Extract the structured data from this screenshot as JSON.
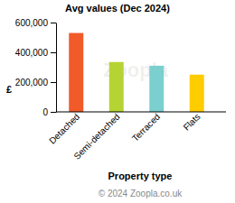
{
  "chart_data": {
    "type": "bar",
    "title": "Avg values (Dec 2024)",
    "categories": [
      "Detached",
      "Semi-detached",
      "Terraced",
      "Flats"
    ],
    "values": [
      530000,
      335000,
      310000,
      250000
    ],
    "colors": [
      "#f15a29",
      "#b6d334",
      "#7bcfcf",
      "#ffcc00"
    ],
    "ylim": [
      0,
      600000
    ],
    "yticks": [
      {
        "value": 0,
        "label": "0"
      },
      {
        "value": 200000,
        "label": "200,000"
      },
      {
        "value": 400000,
        "label": "400,000"
      },
      {
        "value": 600000,
        "label": "600,000"
      }
    ],
    "grid": false,
    "x_label": "Property type",
    "y_label": "£",
    "footer": "© 2024 Zoopla.co.uk",
    "watermark": "Zoopla"
  }
}
